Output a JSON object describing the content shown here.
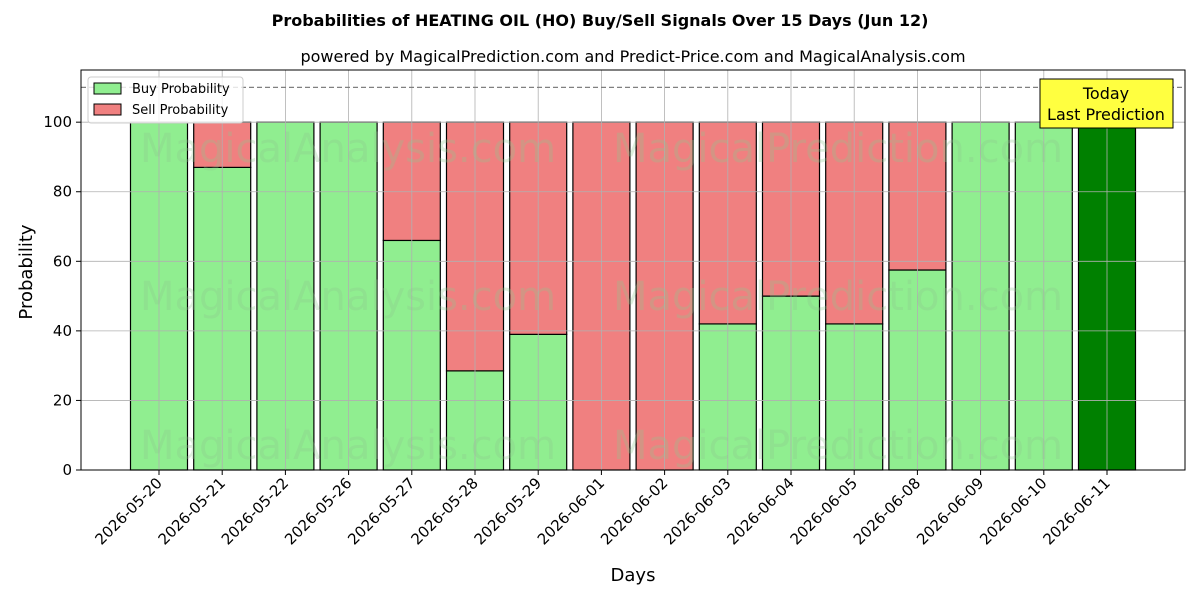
{
  "chart_data": {
    "type": "bar",
    "stacked": true,
    "title": "Probabilities of HEATING OIL (HO) Buy/Sell Signals Over 15 Days (Jun 12)",
    "subtitle": "powered by MagicalPrediction.com and Predict-Price.com and MagicalAnalysis.com",
    "xlabel": "Days",
    "ylabel": "Probability",
    "ylim": [
      0,
      115
    ],
    "yticks": [
      0,
      20,
      40,
      60,
      80,
      100
    ],
    "grid": true,
    "legend_position": "top-left",
    "reference_line": 110,
    "categories": [
      "2026-05-20",
      "2026-05-21",
      "2026-05-22",
      "2026-05-26",
      "2026-05-27",
      "2026-05-28",
      "2026-05-29",
      "2026-06-01",
      "2026-06-02",
      "2026-06-03",
      "2026-06-04",
      "2026-06-05",
      "2026-06-08",
      "2026-06-09",
      "2026-06-10",
      "2026-06-11"
    ],
    "series": [
      {
        "name": "Buy Probability",
        "color": "#90ee90",
        "values": [
          100,
          87,
          100,
          100,
          66,
          28.5,
          39,
          0,
          0,
          42,
          50,
          42,
          57.5,
          100,
          100,
          100
        ]
      },
      {
        "name": "Sell Probability",
        "color": "#f08080",
        "values": [
          0,
          13,
          0,
          0,
          34,
          71.5,
          61,
          100,
          100,
          58,
          50,
          58,
          42.5,
          0,
          0,
          0
        ]
      }
    ],
    "highlight": {
      "index": 15,
      "color": "#008000"
    },
    "annotation": {
      "text_line1": "Today",
      "text_line2": "Last Prediction",
      "color": "#ffff40"
    },
    "watermarks": [
      "MagicalAnalysis.com",
      "MagicalPrediction.com"
    ]
  }
}
